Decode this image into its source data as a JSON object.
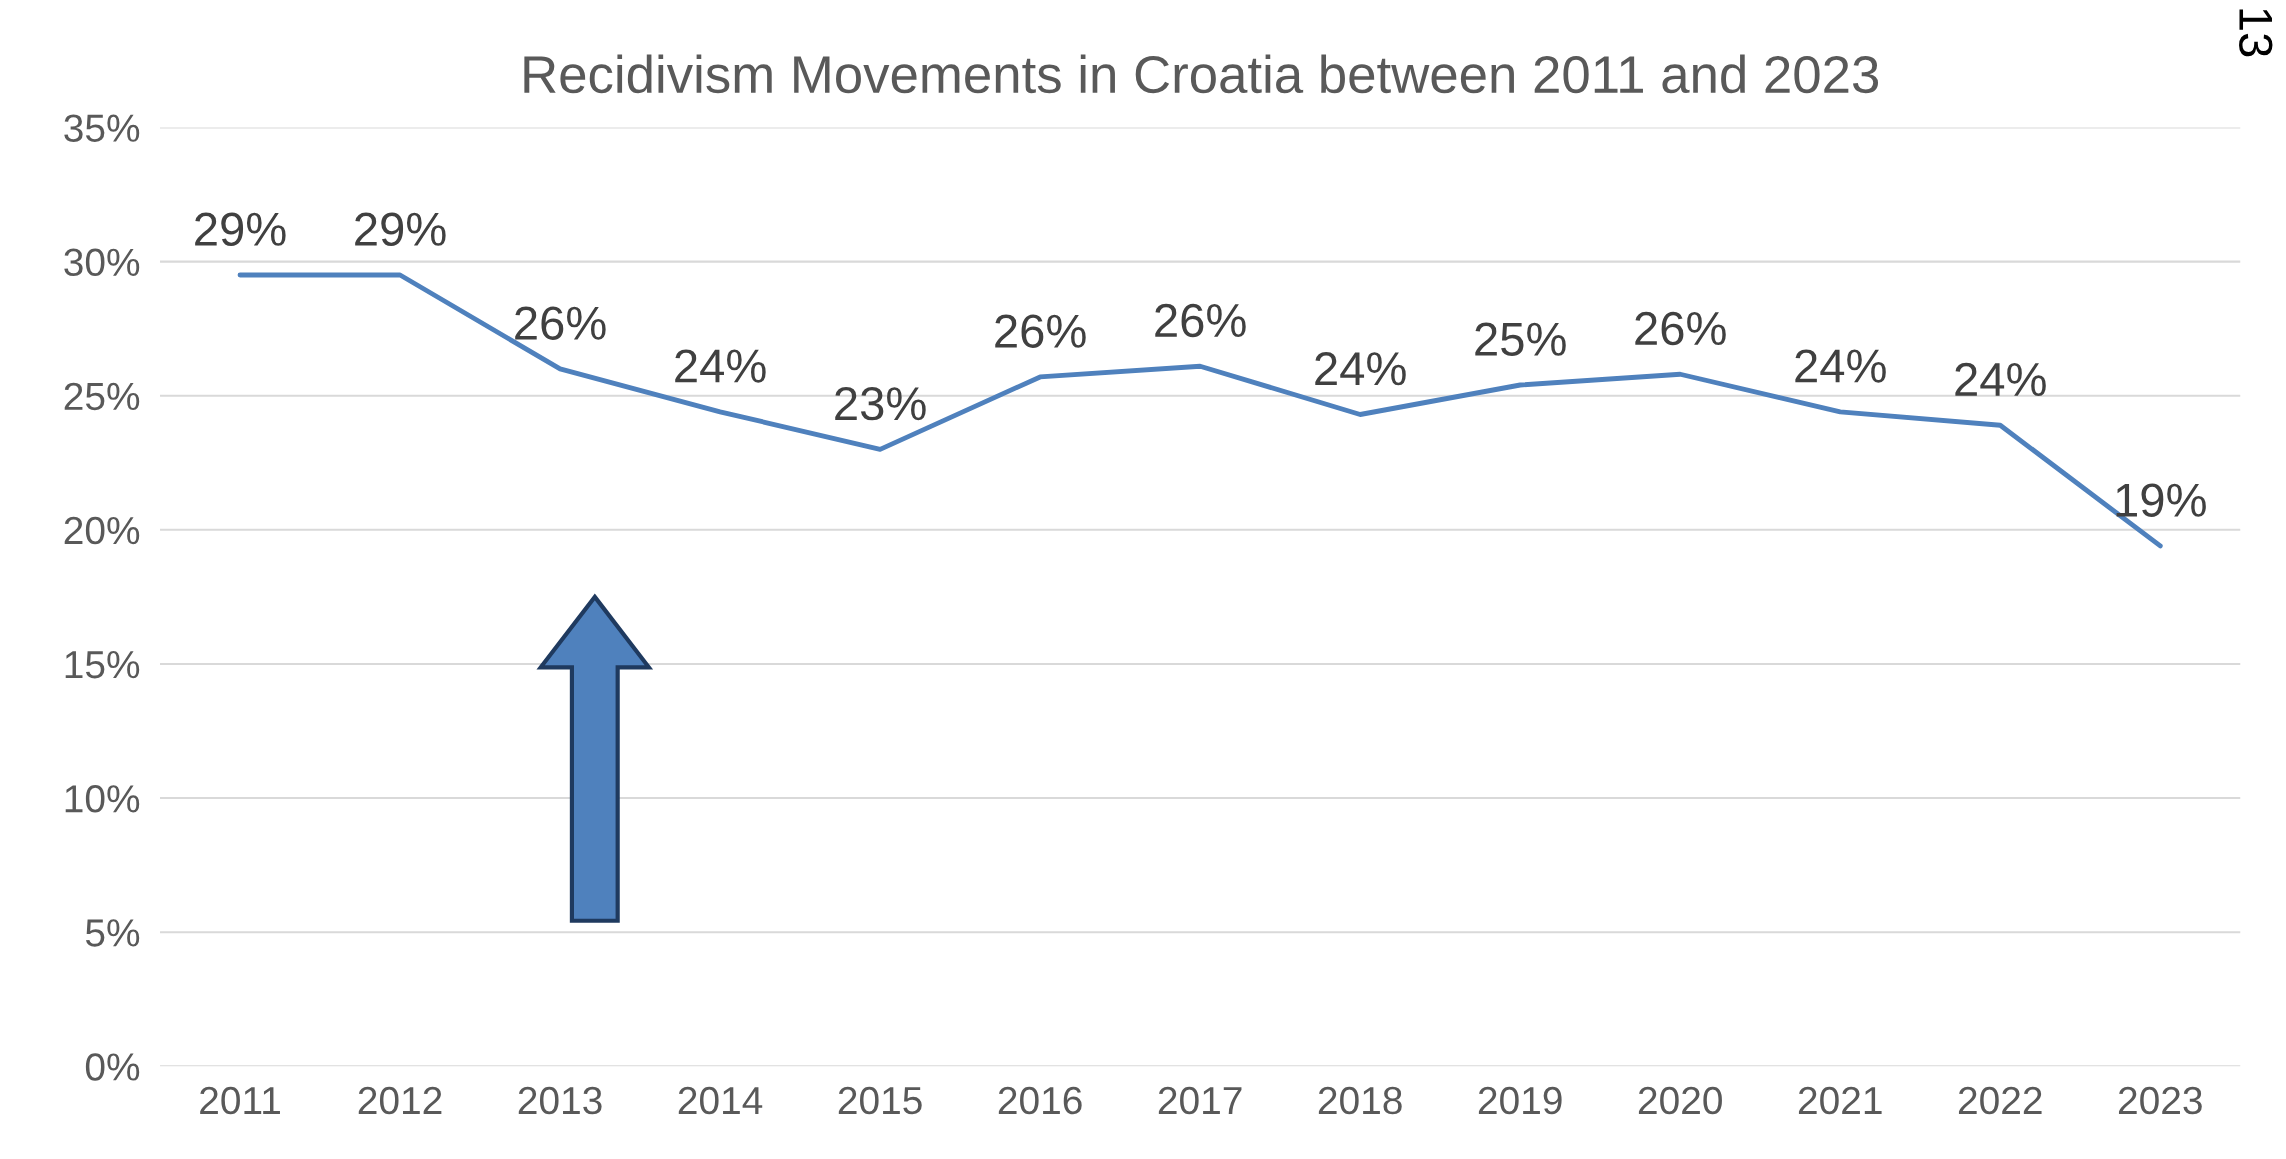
{
  "chart_data": {
    "type": "line",
    "title": "Recidivism Movements in Croatia between 2011 and 2023",
    "categories": [
      "2011",
      "2012",
      "2013",
      "2014",
      "2015",
      "2016",
      "2017",
      "2018",
      "2019",
      "2020",
      "2021",
      "2022",
      "2023"
    ],
    "series": [
      {
        "color": "#4f81bd",
        "values": [
          29.5,
          29.5,
          26.0,
          24.4,
          23.0,
          25.7,
          26.1,
          24.3,
          25.4,
          25.8,
          24.4,
          23.9,
          19.4
        ],
        "value_labels": [
          "29%",
          "29%",
          "26%",
          "24%",
          "23%",
          "26%",
          "26%",
          "24%",
          "25%",
          "26%",
          "24%",
          "24%",
          "19%"
        ]
      }
    ],
    "ylim": [
      0,
      35
    ],
    "yticks": [
      {
        "value": 0,
        "label": "0%"
      },
      {
        "value": 5,
        "label": "5%"
      },
      {
        "value": 10,
        "label": "10%"
      },
      {
        "value": 15,
        "label": "15%"
      },
      {
        "value": 20,
        "label": "20%"
      },
      {
        "value": 25,
        "label": "25%"
      },
      {
        "value": 30,
        "label": "30%"
      },
      {
        "value": 35,
        "label": "35%"
      }
    ],
    "grid": "y",
    "legend": false,
    "line_style": "solid",
    "annotations": [
      "13"
    ]
  }
}
